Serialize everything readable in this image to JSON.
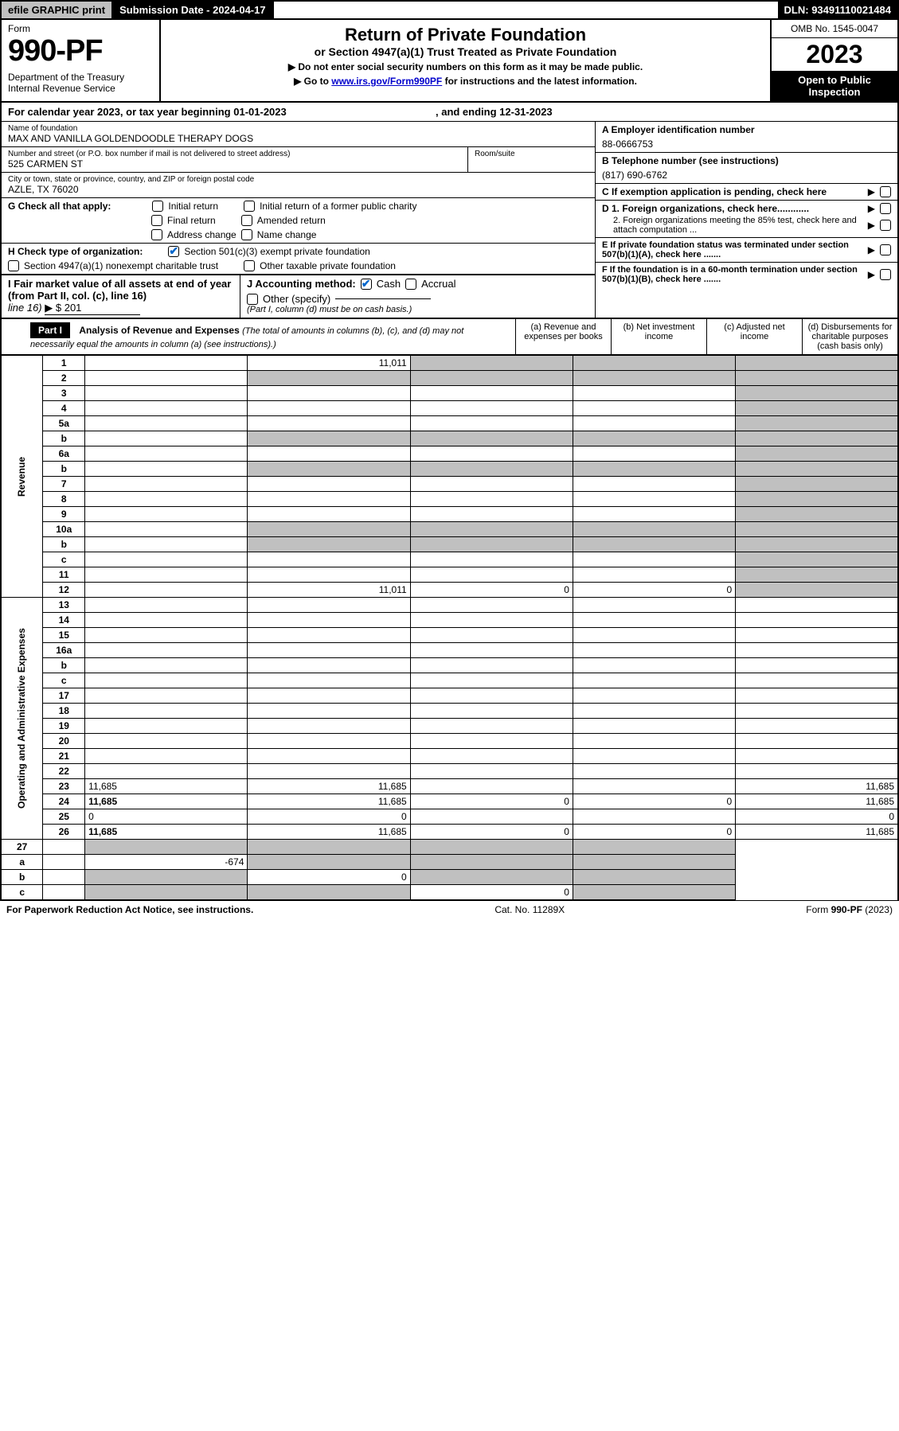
{
  "topbar": {
    "efile": "efile GRAPHIC print",
    "subdate_lbl": "Submission Date - 2024-04-17",
    "dln": "DLN: 93491110021484"
  },
  "header": {
    "form_word": "Form",
    "form_num": "990-PF",
    "dept": "Department of the Treasury\nInternal Revenue Service",
    "title": "Return of Private Foundation",
    "subtitle": "or Section 4947(a)(1) Trust Treated as Private Foundation",
    "note1": "▶ Do not enter social security numbers on this form as it may be made public.",
    "note2_pre": "▶ Go to ",
    "note2_link": "www.irs.gov/Form990PF",
    "note2_post": " for instructions and the latest information.",
    "omb": "OMB No. 1545-0047",
    "year": "2023",
    "open": "Open to Public\nInspection"
  },
  "calyear": {
    "pre": "For calendar year 2023, or tax year beginning ",
    "begin": "01-01-2023",
    "mid": ", and ending ",
    "end": "12-31-2023"
  },
  "foundation": {
    "name_lbl": "Name of foundation",
    "name": "MAX AND VANILLA GOLDENDOODLE THERAPY DOGS",
    "addr_lbl": "Number and street (or P.O. box number if mail is not delivered to street address)",
    "addr": "525 CARMEN ST",
    "room_lbl": "Room/suite",
    "city_lbl": "City or town, state or province, country, and ZIP or foreign postal code",
    "city": "AZLE, TX  76020",
    "ein_lbl": "A Employer identification number",
    "ein": "88-0666753",
    "tel_lbl": "B Telephone number (see instructions)",
    "tel": "(817) 690-6762",
    "c_lbl": "C If exemption application is pending, check here",
    "d1_lbl": "D 1. Foreign organizations, check here............",
    "d2_lbl": "2. Foreign organizations meeting the 85% test, check here and attach computation ...",
    "e_lbl": "E If private foundation status was terminated under section 507(b)(1)(A), check here .......",
    "f_lbl": "F If the foundation is in a 60-month termination under section 507(b)(1)(B), check here .......",
    "g_lbl": "G Check all that apply:",
    "g_opts": [
      "Initial return",
      "Initial return of a former public charity",
      "Final return",
      "Amended return",
      "Address change",
      "Name change"
    ],
    "h_lbl": "H Check type of organization:",
    "h1": "Section 501(c)(3) exempt private foundation",
    "h2": "Section 4947(a)(1) nonexempt charitable trust",
    "h3": "Other taxable private foundation",
    "i_lbl": "I Fair market value of all assets at end of year (from Part II, col. (c), line 16)",
    "i_val": "▶ $  201",
    "j_lbl": "J Accounting method:",
    "j_cash": "Cash",
    "j_accrual": "Accrual",
    "j_other": "Other (specify)",
    "j_note": "(Part I, column (d) must be on cash basis.)"
  },
  "part1": {
    "label": "Part I",
    "title": "Analysis of Revenue and Expenses",
    "title_note": " (The total of amounts in columns (b), (c), and (d) may not necessarily equal the amounts in column (a) (see instructions).)",
    "col_a": "(a)  Revenue and expenses per books",
    "col_b": "(b)  Net investment income",
    "col_c": "(c)  Adjusted net income",
    "col_d": "(d)  Disbursements for charitable purposes (cash basis only)"
  },
  "side_labels": {
    "revenue": "Revenue",
    "expenses": "Operating and Administrative Expenses"
  },
  "lines": [
    {
      "n": "1",
      "d": "",
      "a": "11,011",
      "b": "",
      "c": ""
    },
    {
      "n": "2",
      "d": "",
      "a": "",
      "b": "",
      "c": "",
      "shade_all": true
    },
    {
      "n": "3",
      "d": "",
      "a": "",
      "b": "",
      "c": ""
    },
    {
      "n": "4",
      "d": "",
      "a": "",
      "b": "",
      "c": ""
    },
    {
      "n": "5a",
      "d": "",
      "a": "",
      "b": "",
      "c": ""
    },
    {
      "n": "b",
      "d": "",
      "a": "",
      "b": "",
      "c": "",
      "shade_all": true,
      "subline": true
    },
    {
      "n": "6a",
      "d": "",
      "a": "",
      "b": "",
      "c": ""
    },
    {
      "n": "b",
      "d": "",
      "a": "",
      "b": "",
      "c": "",
      "shade_all": true,
      "subline": true
    },
    {
      "n": "7",
      "d": "",
      "a": "",
      "b": "",
      "c": ""
    },
    {
      "n": "8",
      "d": "",
      "a": "",
      "b": "",
      "c": ""
    },
    {
      "n": "9",
      "d": "",
      "a": "",
      "b": "",
      "c": ""
    },
    {
      "n": "10a",
      "d": "",
      "a": "",
      "b": "",
      "c": "",
      "shade_all": true,
      "subline": true
    },
    {
      "n": "b",
      "d": "",
      "a": "",
      "b": "",
      "c": "",
      "shade_all": true,
      "subline": true
    },
    {
      "n": "c",
      "d": "",
      "a": "",
      "b": "",
      "c": ""
    },
    {
      "n": "11",
      "d": "",
      "a": "",
      "b": "",
      "c": ""
    },
    {
      "n": "12",
      "d": "",
      "a": "11,011",
      "b": "0",
      "c": "0",
      "bold": true
    }
  ],
  "exp_lines": [
    {
      "n": "13",
      "d": "",
      "a": "",
      "b": "",
      "c": ""
    },
    {
      "n": "14",
      "d": "",
      "a": "",
      "b": "",
      "c": ""
    },
    {
      "n": "15",
      "d": "",
      "a": "",
      "b": "",
      "c": ""
    },
    {
      "n": "16a",
      "d": "",
      "a": "",
      "b": "",
      "c": ""
    },
    {
      "n": "b",
      "d": "",
      "a": "",
      "b": "",
      "c": ""
    },
    {
      "n": "c",
      "d": "",
      "a": "",
      "b": "",
      "c": ""
    },
    {
      "n": "17",
      "d": "",
      "a": "",
      "b": "",
      "c": ""
    },
    {
      "n": "18",
      "d": "",
      "a": "",
      "b": "",
      "c": ""
    },
    {
      "n": "19",
      "d": "",
      "a": "",
      "b": "",
      "c": ""
    },
    {
      "n": "20",
      "d": "",
      "a": "",
      "b": "",
      "c": ""
    },
    {
      "n": "21",
      "d": "",
      "a": "",
      "b": "",
      "c": ""
    },
    {
      "n": "22",
      "d": "",
      "a": "",
      "b": "",
      "c": ""
    },
    {
      "n": "23",
      "d": "11,685",
      "a": "11,685",
      "b": "",
      "c": ""
    },
    {
      "n": "24",
      "d": "11,685",
      "a": "11,685",
      "b": "0",
      "c": "0",
      "bold": true
    },
    {
      "n": "25",
      "d": "0",
      "a": "0",
      "b": "",
      "c": ""
    },
    {
      "n": "26",
      "d": "11,685",
      "a": "11,685",
      "b": "0",
      "c": "0",
      "bold": true
    }
  ],
  "net_lines": [
    {
      "n": "27",
      "d": "",
      "a": "",
      "b": "",
      "c": ""
    },
    {
      "n": "a",
      "d": "",
      "a": "-674",
      "b": "",
      "c": "",
      "bold": true
    },
    {
      "n": "b",
      "d": "",
      "a": "",
      "b": "0",
      "c": "",
      "bold": true
    },
    {
      "n": "c",
      "d": "",
      "a": "",
      "b": "",
      "c": "0",
      "bold": true
    }
  ],
  "footer": {
    "left": "For Paperwork Reduction Act Notice, see instructions.",
    "mid": "Cat. No. 11289X",
    "right": "Form 990-PF (2023)"
  }
}
